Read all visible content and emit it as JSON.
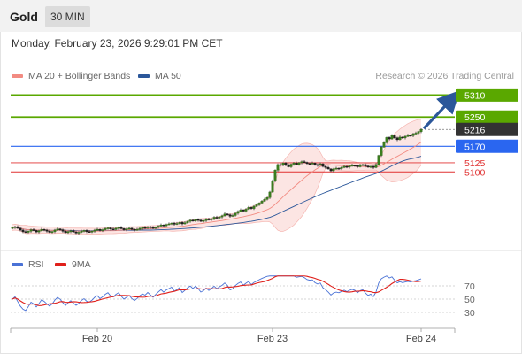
{
  "header": {
    "title": "Gold",
    "timeframe": "30 MIN"
  },
  "timestamp": "Monday, February 23, 2026 9:29:01 PM CET",
  "legend": {
    "bollinger": {
      "label": "MA 20 + Bollinger Bands",
      "color": "#f28b82"
    },
    "ma50": {
      "label": "MA 50",
      "color": "#2b579a"
    }
  },
  "credit": "Research © 2026 Trading Central",
  "rsi_legend": {
    "rsi": {
      "label": "RSI",
      "color": "#4a72d6"
    },
    "ma9": {
      "label": "9MA",
      "color": "#e0201b"
    }
  },
  "chart_data": [
    {
      "type": "candlestick",
      "ylim": [
        4912,
        5340
      ],
      "x_ticks": [
        {
          "label": "Feb 20",
          "index": 32
        },
        {
          "label": "Feb 23",
          "index": 98
        },
        {
          "label": "Feb 24",
          "index": 154
        }
      ],
      "closes": [
        4948,
        4950,
        4946,
        4941,
        4937,
        4935,
        4938,
        4942,
        4940,
        4936,
        4939,
        4943,
        4941,
        4938,
        4935,
        4937,
        4941,
        4944,
        4942,
        4938,
        4934,
        4937,
        4939,
        4936,
        4933,
        4935,
        4938,
        4940,
        4937,
        4936,
        4938,
        4941,
        4943,
        4940,
        4942,
        4945,
        4947,
        4944,
        4943,
        4946,
        4948,
        4945,
        4942,
        4944,
        4946,
        4943,
        4941,
        4943,
        4946,
        4948,
        4947,
        4950,
        4948,
        4946,
        4949,
        4952,
        4955,
        4953,
        4956,
        4958,
        4960,
        4957,
        4959,
        4962,
        4958,
        4961,
        4965,
        4968,
        4966,
        4970,
        4968,
        4965,
        4967,
        4971,
        4969,
        4972,
        4976,
        4974,
        4977,
        4980,
        4985,
        4983,
        4979,
        4981,
        4987,
        4992,
        4996,
        4993,
        4998,
        5003,
        5000,
        5006,
        5010,
        5015,
        5020,
        5025,
        5030,
        5045,
        5075,
        5105,
        5120,
        5118,
        5124,
        5119,
        5114,
        5121,
        5124,
        5120,
        5125,
        5128,
        5126,
        5123,
        5122,
        5124,
        5120,
        5118,
        5122,
        5115,
        5112,
        5108,
        5103,
        5108,
        5110,
        5109,
        5112,
        5115,
        5113,
        5116,
        5118,
        5117,
        5114,
        5118,
        5120,
        5116,
        5113,
        5115,
        5112,
        5120,
        5145,
        5168,
        5180,
        5194,
        5190,
        5199,
        5193,
        5188,
        5195,
        5193,
        5197,
        5200,
        5199,
        5204,
        5206,
        5210,
        5216
      ],
      "horizontal_levels": [
        {
          "price": 5310,
          "label": "5310",
          "color": "#5aa800",
          "style": "resistance"
        },
        {
          "price": 5250,
          "label": "5250",
          "color": "#5aa800",
          "style": "resistance"
        },
        {
          "price": 5216,
          "label": "5216",
          "color": "#333333",
          "style": "last"
        },
        {
          "price": 5170,
          "label": "5170",
          "color": "#2a66f0",
          "style": "pivot"
        },
        {
          "price": 5125,
          "label": "5125",
          "color": "#e03030",
          "style": "support"
        },
        {
          "price": 5100,
          "label": "5100",
          "color": "#e03030",
          "style": "support"
        }
      ],
      "arrow": {
        "from": 5216,
        "to": 5310,
        "color": "#2b579a"
      }
    },
    {
      "type": "line",
      "ylim": [
        10,
        90
      ],
      "y_ticks": [
        70,
        50,
        30
      ],
      "series": [
        {
          "name": "RSI",
          "color": "#4a72d6"
        },
        {
          "name": "9MA",
          "color": "#e0201b"
        }
      ]
    }
  ]
}
